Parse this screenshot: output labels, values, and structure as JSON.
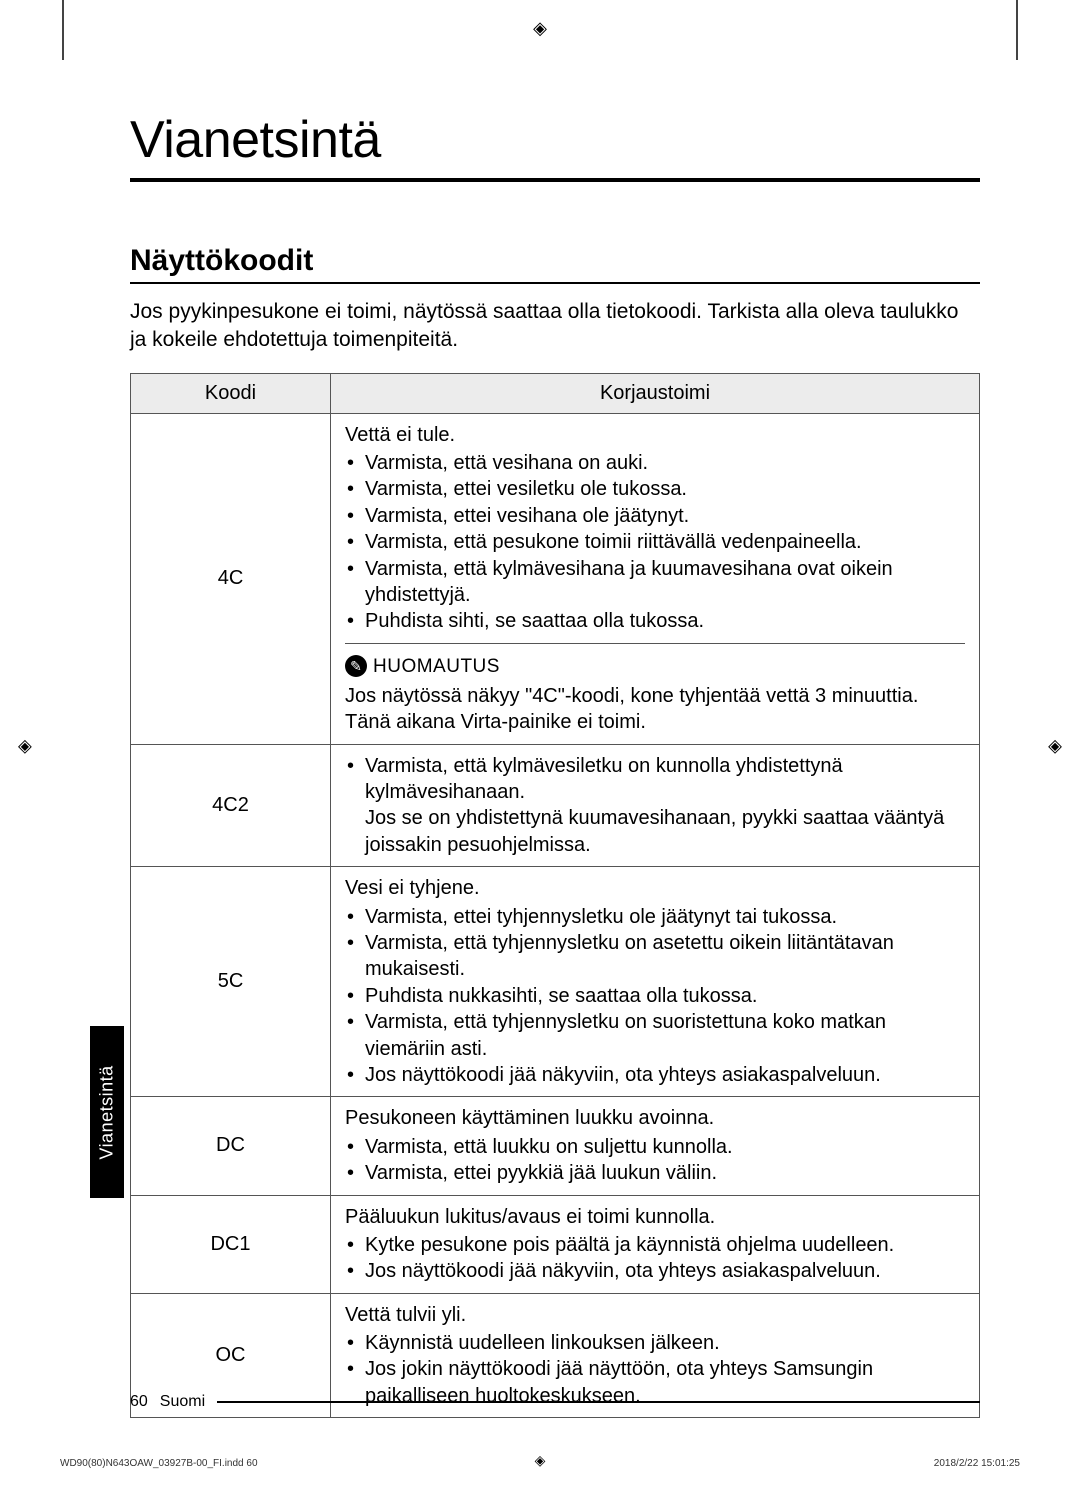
{
  "print_marks": {
    "glyph": "◈"
  },
  "chapter": {
    "title": "Vianetsintä"
  },
  "section": {
    "title": "Näyttökoodit",
    "intro": "Jos pyykinpesukone ei toimi, näytössä saattaa olla tietokoodi. Tarkista alla oleva taulukko ja kokeile ehdotettuja toimenpiteitä."
  },
  "table": {
    "headers": {
      "code": "Koodi",
      "remedy": "Korjaustoimi"
    },
    "rows": [
      {
        "code": "4C",
        "title": "Vettä ei tule.",
        "bullets": [
          "Varmista, että vesihana on auki.",
          "Varmista, ettei vesiletku ole tukossa.",
          "Varmista, ettei vesihana ole jäätynyt.",
          "Varmista, että pesukone toimii riittävällä vedenpaineella.",
          "Varmista, että kylmävesihana ja kuumavesihana ovat oikein yhdistettyjä.",
          "Puhdista sihti, se saattaa olla tukossa."
        ],
        "note_label": "HUOMAUTUS",
        "note_text": "Jos näytössä näkyy \"4C\"-koodi, kone tyhjentää vettä 3 minuuttia. Tänä aikana Virta-painike ei toimi."
      },
      {
        "code": "4C2",
        "bullets": [
          "Varmista, että kylmävesiletku on kunnolla yhdistettynä kylmävesihanaan.\nJos se on yhdistettynä kuumavesihanaan, pyykki saattaa vääntyä joissakin pesuohjelmissa."
        ]
      },
      {
        "code": "5C",
        "title": "Vesi ei tyhjene.",
        "bullets": [
          "Varmista, ettei tyhjennysletku ole jäätynyt tai tukossa.",
          "Varmista, että tyhjennysletku on asetettu oikein liitäntätavan mukaisesti.",
          "Puhdista nukkasihti, se saattaa olla tukossa.",
          "Varmista, että tyhjennysletku on suoristettuna koko matkan viemäriin asti.",
          "Jos näyttökoodi jää näkyviin, ota yhteys asiakaspalveluun."
        ]
      },
      {
        "code": "DC",
        "title": "Pesukoneen käyttäminen luukku avoinna.",
        "bullets": [
          "Varmista, että luukku on suljettu kunnolla.",
          "Varmista, ettei pyykkiä jää luukun väliin."
        ]
      },
      {
        "code": "DC1",
        "title": "Pääluukun lukitus/avaus ei toimi kunnolla.",
        "bullets": [
          "Kytke pesukone pois päältä ja käynnistä ohjelma uudelleen.",
          "Jos näyttökoodi jää näkyviin, ota yhteys asiakaspalveluun."
        ]
      },
      {
        "code": "OC",
        "title": "Vettä tulvii yli.",
        "bullets": [
          "Käynnistä uudelleen linkouksen jälkeen.",
          "Jos jokin näyttökoodi jää näyttöön, ota yhteys Samsungin paikalliseen huoltokeskukseen."
        ]
      }
    ]
  },
  "side_tab": "Vianetsintä",
  "footer": {
    "page": "60",
    "lang": "Suomi"
  },
  "footer_meta": {
    "left": "WD90(80)N643OAW_03927B-00_FI.indd   60",
    "right": "2018/2/22   15:01:25"
  }
}
